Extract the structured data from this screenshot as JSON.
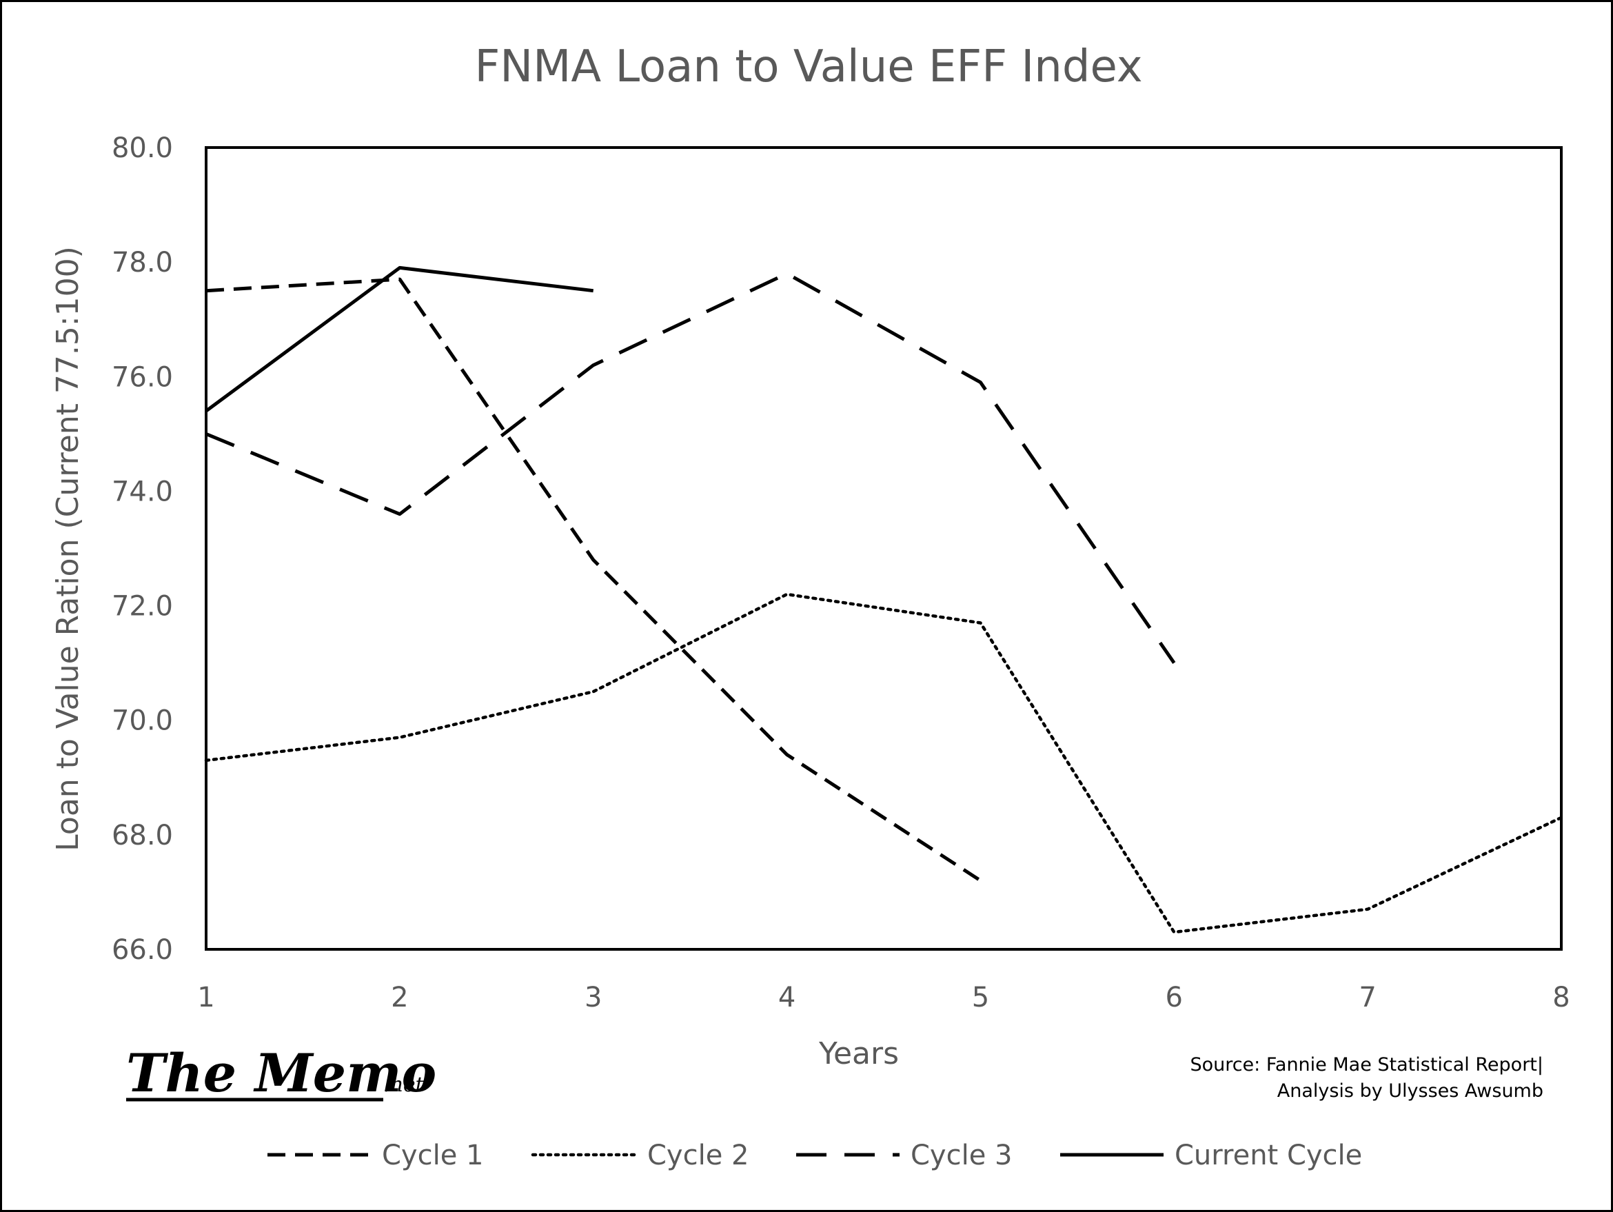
{
  "chart_data": {
    "type": "line",
    "title": "FNMA Loan to Value EFF Index",
    "xlabel": "Years",
    "ylabel": "Loan to Value Ration (Current 77.5:100)",
    "x": [
      1,
      2,
      3,
      4,
      5,
      6,
      7,
      8
    ],
    "xlim": [
      1,
      8
    ],
    "ylim": [
      66,
      80
    ],
    "y_ticks": [
      "66.0",
      "68.0",
      "70.0",
      "72.0",
      "74.0",
      "76.0",
      "78.0",
      "80.0"
    ],
    "x_ticks": [
      "1",
      "2",
      "3",
      "4",
      "5",
      "6",
      "7",
      "8"
    ],
    "grid": false,
    "legend_position": "bottom",
    "series": [
      {
        "name": "Cycle 1",
        "style": "dashed",
        "x": [
          1,
          2,
          3,
          4,
          5
        ],
        "values": [
          77.5,
          77.7,
          72.8,
          69.4,
          67.2
        ]
      },
      {
        "name": "Cycle 2",
        "style": "dotted",
        "x": [
          1,
          2,
          3,
          4,
          5,
          6,
          7,
          8
        ],
        "values": [
          69.3,
          69.7,
          70.5,
          72.2,
          71.7,
          66.3,
          66.7,
          68.3
        ]
      },
      {
        "name": "Cycle 3",
        "style": "long-dashed",
        "x": [
          1,
          2,
          3,
          4,
          5,
          6
        ],
        "values": [
          75.0,
          73.6,
          76.2,
          77.8,
          75.9,
          71.0
        ]
      },
      {
        "name": "Current Cycle",
        "style": "solid",
        "x": [
          1,
          2,
          3
        ],
        "values": [
          75.4,
          77.9,
          77.5
        ]
      }
    ],
    "line_color": "#000000",
    "text_color": "#595959"
  },
  "branding": {
    "logo_main": "The Memo",
    "logo_suffix": ".net"
  },
  "source": {
    "line1": "Source: Fannie Mae Statistical Report|",
    "line2": "Analysis by Ulysses Awsumb"
  }
}
